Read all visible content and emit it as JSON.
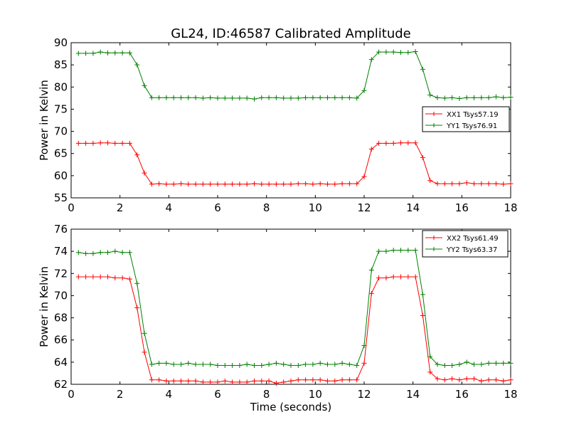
{
  "figure": {
    "title": "GL24, ID:46587 Calibrated Amplitude",
    "xlabel": "Time (seconds)"
  },
  "chart_data": [
    {
      "type": "line",
      "title": "GL24, ID:46587 Calibrated Amplitude",
      "xlabel": "",
      "ylabel": "Power in Kelvin",
      "xlim": [
        0,
        18
      ],
      "ylim": [
        55,
        90
      ],
      "xticks": [
        0,
        2,
        4,
        6,
        8,
        10,
        12,
        14,
        16,
        18
      ],
      "yticks": [
        55,
        60,
        65,
        70,
        75,
        80,
        85,
        90
      ],
      "grid": false,
      "legend_position": "right",
      "x": [
        0.3,
        0.6,
        0.9,
        1.2,
        1.5,
        1.8,
        2.1,
        2.4,
        2.7,
        3.0,
        3.3,
        3.6,
        3.9,
        4.2,
        4.5,
        4.8,
        5.1,
        5.4,
        5.7,
        6.0,
        6.3,
        6.6,
        6.9,
        7.2,
        7.5,
        7.8,
        8.1,
        8.4,
        8.7,
        9.0,
        9.3,
        9.6,
        9.9,
        10.2,
        10.5,
        10.8,
        11.1,
        11.4,
        11.7,
        12.0,
        12.3,
        12.6,
        12.9,
        13.2,
        13.5,
        13.8,
        14.1,
        14.4,
        14.7,
        15.0,
        15.3,
        15.6,
        15.9,
        16.2,
        16.5,
        16.8,
        17.1,
        17.4,
        17.7,
        18.0
      ],
      "series": [
        {
          "name": "XX1 Tsys57.19",
          "color": "#ff0000",
          "values": [
            67.3,
            67.3,
            67.3,
            67.4,
            67.4,
            67.3,
            67.3,
            67.3,
            64.7,
            60.6,
            58.1,
            58.2,
            58.1,
            58.1,
            58.2,
            58.1,
            58.1,
            58.1,
            58.1,
            58.1,
            58.1,
            58.1,
            58.1,
            58.1,
            58.2,
            58.1,
            58.1,
            58.1,
            58.1,
            58.1,
            58.2,
            58.2,
            58.1,
            58.2,
            58.1,
            58.1,
            58.2,
            58.2,
            58.2,
            59.8,
            66.0,
            67.3,
            67.3,
            67.3,
            67.4,
            67.4,
            67.4,
            64.1,
            58.9,
            58.2,
            58.2,
            58.2,
            58.2,
            58.4,
            58.2,
            58.2,
            58.2,
            58.2,
            58.1,
            58.2
          ]
        },
        {
          "name": "YY1 Tsys76.91",
          "color": "#008000",
          "values": [
            87.6,
            87.6,
            87.6,
            87.9,
            87.7,
            87.7,
            87.7,
            87.7,
            85.0,
            80.3,
            77.6,
            77.6,
            77.6,
            77.6,
            77.6,
            77.6,
            77.6,
            77.5,
            77.6,
            77.5,
            77.5,
            77.5,
            77.5,
            77.5,
            77.3,
            77.6,
            77.6,
            77.6,
            77.5,
            77.5,
            77.5,
            77.6,
            77.6,
            77.6,
            77.6,
            77.6,
            77.6,
            77.6,
            77.5,
            79.2,
            86.2,
            87.9,
            87.9,
            87.9,
            87.8,
            87.8,
            88.0,
            84.0,
            78.2,
            77.6,
            77.5,
            77.6,
            77.4,
            77.6,
            77.6,
            77.6,
            77.6,
            77.8,
            77.6,
            77.7
          ]
        }
      ]
    },
    {
      "type": "line",
      "title": "",
      "xlabel": "Time (seconds)",
      "ylabel": "Power in Kelvin",
      "xlim": [
        0,
        18
      ],
      "ylim": [
        62,
        76
      ],
      "xticks": [
        0,
        2,
        4,
        6,
        8,
        10,
        12,
        14,
        16,
        18
      ],
      "yticks": [
        62,
        64,
        66,
        68,
        70,
        72,
        74,
        76
      ],
      "grid": false,
      "legend_position": "top-right",
      "x": [
        0.3,
        0.6,
        0.9,
        1.2,
        1.5,
        1.8,
        2.1,
        2.4,
        2.7,
        3.0,
        3.3,
        3.6,
        3.9,
        4.2,
        4.5,
        4.8,
        5.1,
        5.4,
        5.7,
        6.0,
        6.3,
        6.6,
        6.9,
        7.2,
        7.5,
        7.8,
        8.1,
        8.4,
        8.7,
        9.0,
        9.3,
        9.6,
        9.9,
        10.2,
        10.5,
        10.8,
        11.1,
        11.4,
        11.7,
        12.0,
        12.3,
        12.6,
        12.9,
        13.2,
        13.5,
        13.8,
        14.1,
        14.4,
        14.7,
        15.0,
        15.3,
        15.6,
        15.9,
        16.2,
        16.5,
        16.8,
        17.1,
        17.4,
        17.7,
        18.0
      ],
      "series": [
        {
          "name": "XX2 Tsys61.49",
          "color": "#ff0000",
          "values": [
            71.7,
            71.7,
            71.7,
            71.7,
            71.7,
            71.6,
            71.6,
            71.5,
            68.9,
            64.9,
            62.4,
            62.4,
            62.3,
            62.3,
            62.3,
            62.3,
            62.3,
            62.2,
            62.2,
            62.2,
            62.3,
            62.2,
            62.2,
            62.2,
            62.3,
            62.3,
            62.3,
            62.1,
            62.2,
            62.3,
            62.4,
            62.4,
            62.4,
            62.4,
            62.3,
            62.3,
            62.4,
            62.4,
            62.4,
            63.9,
            70.2,
            71.6,
            71.6,
            71.7,
            71.7,
            71.7,
            71.7,
            68.2,
            63.1,
            62.5,
            62.4,
            62.5,
            62.4,
            62.5,
            62.5,
            62.3,
            62.4,
            62.4,
            62.3,
            62.4
          ]
        },
        {
          "name": "YY2 Tsys63.37",
          "color": "#008000",
          "values": [
            73.9,
            73.8,
            73.8,
            73.9,
            73.9,
            74.0,
            73.9,
            73.9,
            71.1,
            66.6,
            63.8,
            63.9,
            63.9,
            63.8,
            63.8,
            63.9,
            63.8,
            63.8,
            63.8,
            63.7,
            63.7,
            63.7,
            63.7,
            63.8,
            63.7,
            63.7,
            63.8,
            63.9,
            63.8,
            63.7,
            63.7,
            63.8,
            63.8,
            63.9,
            63.8,
            63.8,
            63.9,
            63.8,
            63.7,
            65.5,
            72.3,
            74.0,
            74.0,
            74.1,
            74.1,
            74.1,
            74.1,
            70.1,
            64.5,
            63.8,
            63.7,
            63.7,
            63.8,
            64.0,
            63.8,
            63.8,
            63.9,
            63.9,
            63.9,
            63.9
          ]
        }
      ]
    }
  ]
}
